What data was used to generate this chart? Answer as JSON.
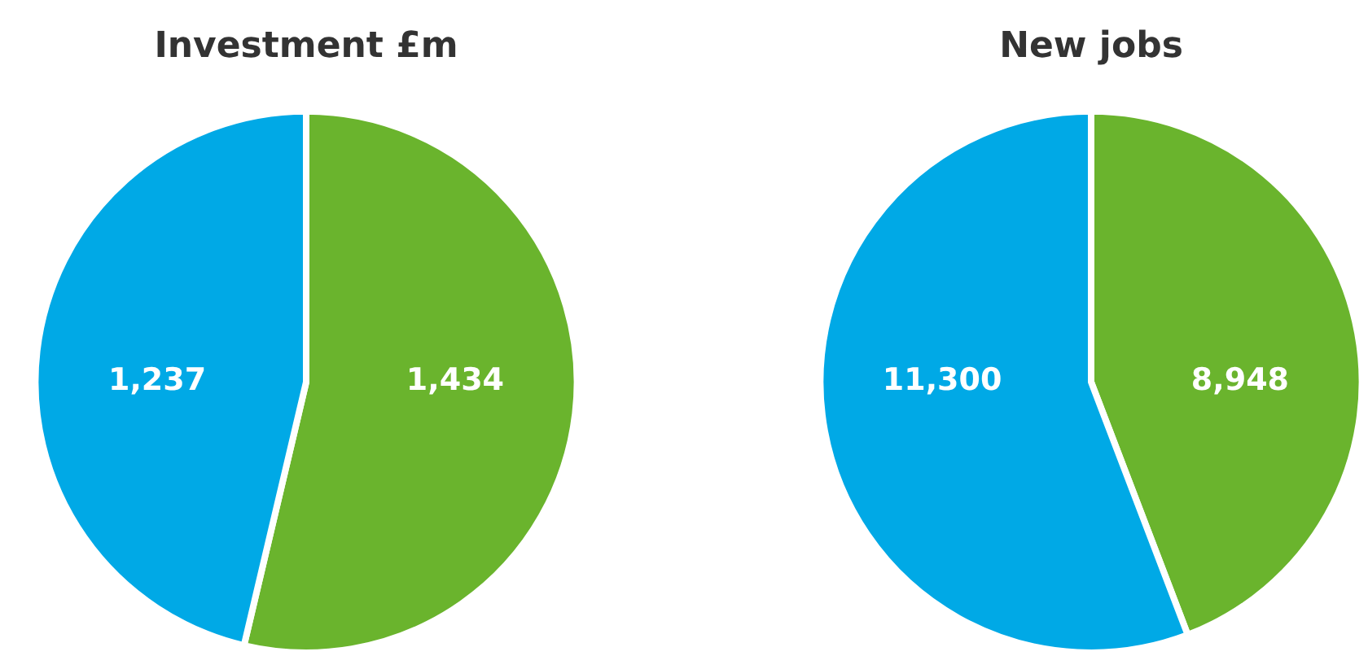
{
  "chart_data": [
    {
      "type": "pie",
      "title": "Investment £m",
      "categories": [
        null,
        null
      ],
      "values": [
        1434,
        1237
      ],
      "colors": [
        "#6ab42d",
        "#00a9e6"
      ],
      "value_labels": [
        "1,434",
        "1,237"
      ],
      "legend": false
    },
    {
      "type": "pie",
      "title": "New jobs",
      "categories": [
        null,
        null
      ],
      "values": [
        8948,
        11300
      ],
      "colors": [
        "#6ab42d",
        "#00a9e6"
      ],
      "value_labels": [
        "8,948",
        "11,300"
      ],
      "legend": false
    }
  ]
}
